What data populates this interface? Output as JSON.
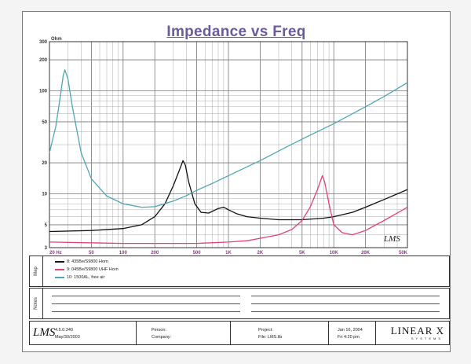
{
  "chart_data": {
    "type": "line",
    "title": "Impedance vs Freq",
    "ylabel": "Ohm",
    "x_scale": "log",
    "y_scale": "log",
    "xlim": [
      20,
      50000
    ],
    "ylim": [
      3,
      300
    ],
    "x_ticks": [
      {
        "v": 20,
        "label": "20 Hz"
      },
      {
        "v": 50,
        "label": "50"
      },
      {
        "v": 100,
        "label": "100"
      },
      {
        "v": 200,
        "label": "200"
      },
      {
        "v": 500,
        "label": "500"
      },
      {
        "v": 1000,
        "label": "1K"
      },
      {
        "v": 2000,
        "label": "2K"
      },
      {
        "v": 5000,
        "label": "5K"
      },
      {
        "v": 10000,
        "label": "10K"
      },
      {
        "v": 20000,
        "label": "20K"
      },
      {
        "v": 50000,
        "label": "50K"
      }
    ],
    "y_ticks": [
      {
        "v": 3,
        "label": "3"
      },
      {
        "v": 5,
        "label": "5"
      },
      {
        "v": 10,
        "label": "10"
      },
      {
        "v": 20,
        "label": "20"
      },
      {
        "v": 50,
        "label": "50"
      },
      {
        "v": 100,
        "label": "100"
      },
      {
        "v": 200,
        "label": "200"
      },
      {
        "v": 300,
        "label": "300"
      }
    ],
    "grid": true,
    "series": [
      {
        "name": "8: 435Be/S9800 Horn",
        "color": "#111111",
        "points": [
          [
            20,
            4.3
          ],
          [
            50,
            4.4
          ],
          [
            100,
            4.6
          ],
          [
            150,
            5.0
          ],
          [
            200,
            6.0
          ],
          [
            250,
            8.0
          ],
          [
            300,
            12.0
          ],
          [
            350,
            18.0
          ],
          [
            370,
            21.0
          ],
          [
            390,
            19.0
          ],
          [
            420,
            13.0
          ],
          [
            480,
            8.0
          ],
          [
            550,
            6.6
          ],
          [
            650,
            6.5
          ],
          [
            800,
            7.2
          ],
          [
            900,
            7.4
          ],
          [
            1000,
            7.0
          ],
          [
            1200,
            6.4
          ],
          [
            1500,
            6.0
          ],
          [
            2000,
            5.8
          ],
          [
            3000,
            5.6
          ],
          [
            5000,
            5.6
          ],
          [
            8000,
            5.8
          ],
          [
            10000,
            6.0
          ],
          [
            15000,
            6.6
          ],
          [
            20000,
            7.4
          ],
          [
            30000,
            8.8
          ],
          [
            50000,
            11.0
          ]
        ]
      },
      {
        "name": "9: 045Be/S9800 UHF Horn",
        "color": "#e0427c",
        "points": [
          [
            20,
            3.4
          ],
          [
            100,
            3.3
          ],
          [
            200,
            3.3
          ],
          [
            500,
            3.3
          ],
          [
            1000,
            3.4
          ],
          [
            1500,
            3.5
          ],
          [
            2000,
            3.7
          ],
          [
            3000,
            4.0
          ],
          [
            4000,
            4.5
          ],
          [
            5000,
            5.5
          ],
          [
            6000,
            7.5
          ],
          [
            7000,
            11.0
          ],
          [
            7800,
            15.0
          ],
          [
            8200,
            13.0
          ],
          [
            9000,
            8.0
          ],
          [
            10000,
            5.0
          ],
          [
            12000,
            4.2
          ],
          [
            15000,
            4.0
          ],
          [
            20000,
            4.4
          ],
          [
            30000,
            5.5
          ],
          [
            50000,
            7.4
          ]
        ]
      },
      {
        "name": "10: 1500AL, free air",
        "color": "#4fa6b4",
        "points": [
          [
            20,
            25
          ],
          [
            23,
            45
          ],
          [
            25,
            80
          ],
          [
            27,
            140
          ],
          [
            28,
            160
          ],
          [
            30,
            130
          ],
          [
            33,
            70
          ],
          [
            40,
            25
          ],
          [
            50,
            14
          ],
          [
            70,
            9.5
          ],
          [
            100,
            8.0
          ],
          [
            150,
            7.4
          ],
          [
            200,
            7.5
          ],
          [
            300,
            8.5
          ],
          [
            400,
            9.6
          ],
          [
            500,
            10.8
          ],
          [
            700,
            12.6
          ],
          [
            1000,
            15
          ],
          [
            2000,
            21
          ],
          [
            3000,
            26
          ],
          [
            5000,
            34
          ],
          [
            10000,
            48
          ],
          [
            20000,
            70
          ],
          [
            30000,
            88
          ],
          [
            50000,
            120
          ]
        ]
      }
    ]
  },
  "legend": {
    "side_label": "Map",
    "items": [
      {
        "label": "8: 435Be/S9800 Horn",
        "color": "#111111"
      },
      {
        "label": "9: 045Be/S9800 UHF Horn",
        "color": "#e0427c"
      },
      {
        "label": "10: 1500AL, free air",
        "color": "#4fa6b4"
      }
    ]
  },
  "notes": {
    "side_label": "Notes"
  },
  "watermark": "LMS",
  "footer": {
    "logo": "LMS",
    "version": "4.5.0.340",
    "date": "May/30/2003",
    "person_label": "Person:",
    "company_label": "Company:",
    "project_label": "Project:",
    "file_label": "File: LMS.lib",
    "stamp_date": "Jan 16, 2004",
    "stamp_time": "Fri  4:20 pm",
    "brand": "LINEAR X",
    "brand_sub": "SYSTEMS"
  }
}
